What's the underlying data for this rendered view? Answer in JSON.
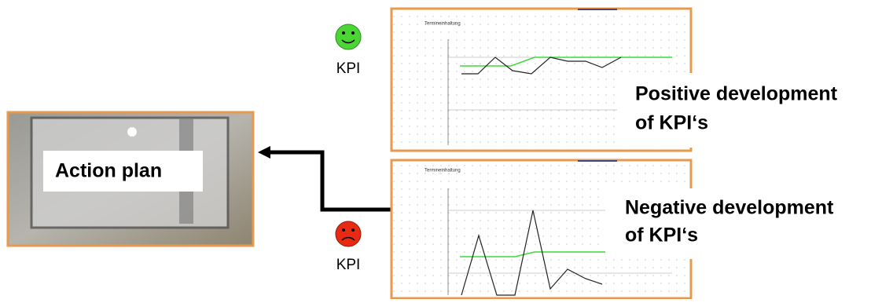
{
  "left": {
    "label": "Action plan"
  },
  "top": {
    "kpi": "KPI",
    "chart_title": "Termineinhaltung",
    "lines": [
      "Positive development",
      "of KPI‘s"
    ]
  },
  "bottom": {
    "kpi": "KPI",
    "chart_title": "Termineinhaltung",
    "lines": [
      "Negative development",
      "of KPI‘s"
    ]
  }
}
